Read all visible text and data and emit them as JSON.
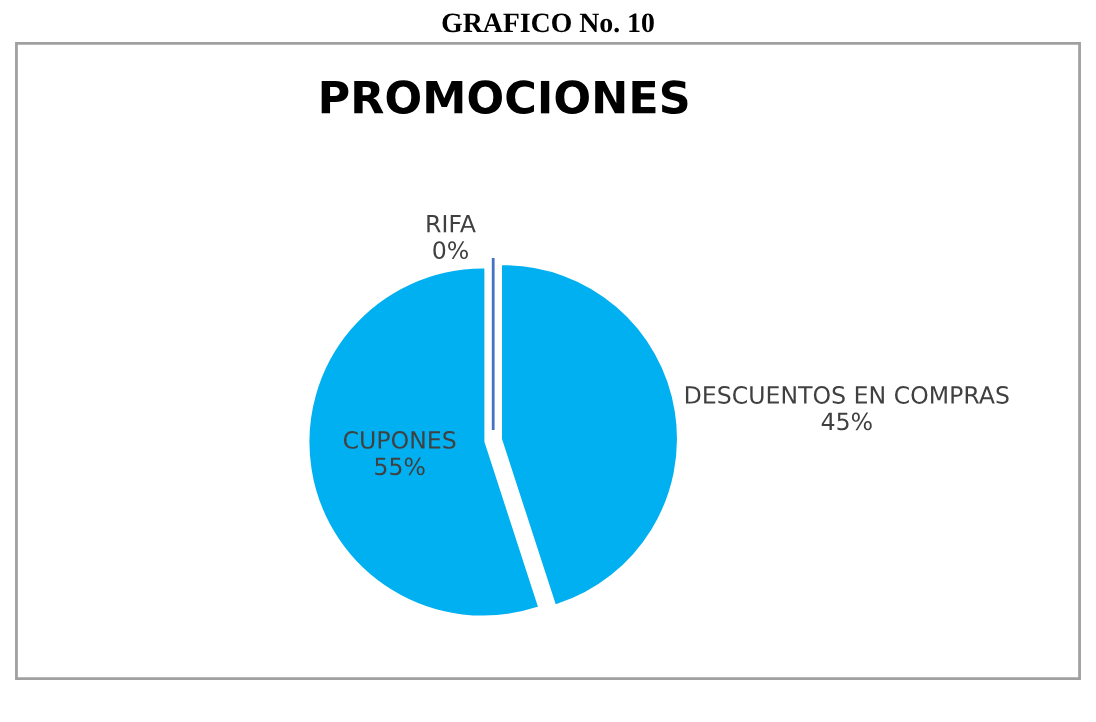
{
  "chart_data": {
    "type": "pie",
    "title": "PROMOCIONES",
    "categories": [
      "DESCUENTOS EN COMPRAS",
      "CUPONES",
      "RIFA"
    ],
    "values": [
      45,
      55,
      0
    ],
    "colors": [
      "#00b0f0",
      "#00b0f0",
      "#4472c4"
    ],
    "value_labels": [
      "45%",
      "55%",
      "0%"
    ],
    "legend": false,
    "annotations": [
      "GRAFICO No. 10"
    ]
  }
}
